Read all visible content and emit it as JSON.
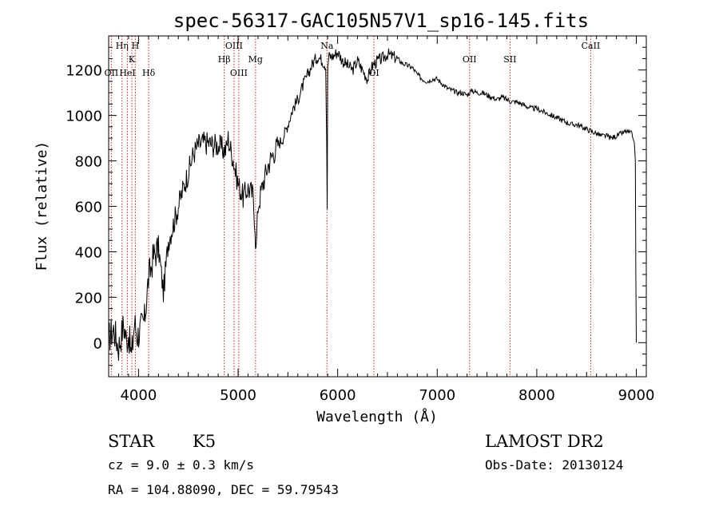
{
  "chart_data": {
    "type": "line",
    "title": "spec-56317-GAC105N57V1_sp16-145.fits",
    "xlabel": "Wavelength (Å)",
    "ylabel": "Flux (relative)",
    "xlim": [
      3700,
      9100
    ],
    "ylim": [
      -150,
      1350
    ],
    "grid": false,
    "xticks": [
      {
        "value": 4000,
        "label": "4000"
      },
      {
        "value": 5000,
        "label": "5000"
      },
      {
        "value": 6000,
        "label": "6000"
      },
      {
        "value": 7000,
        "label": "7000"
      },
      {
        "value": 8000,
        "label": "8000"
      },
      {
        "value": 9000,
        "label": "9000"
      }
    ],
    "yticks": [
      {
        "value": 0,
        "label": "0"
      },
      {
        "value": 200,
        "label": "200"
      },
      {
        "value": 400,
        "label": "400"
      },
      {
        "value": 600,
        "label": "600"
      },
      {
        "value": 800,
        "label": "800"
      },
      {
        "value": 1000,
        "label": "1000"
      },
      {
        "value": 1200,
        "label": "1200"
      }
    ],
    "series": [
      {
        "color": "#000000",
        "x": [
          3700,
          3750,
          3800,
          3850,
          3880,
          3900,
          3930,
          3960,
          3990,
          4020,
          4060,
          4100,
          4150,
          4200,
          4230,
          4250,
          4300,
          4350,
          4400,
          4450,
          4500,
          4550,
          4600,
          4650,
          4700,
          4750,
          4800,
          4850,
          4880,
          4900,
          4920,
          4950,
          4980,
          5000,
          5050,
          5100,
          5150,
          5170,
          5180,
          5200,
          5250,
          5300,
          5350,
          5400,
          5450,
          5500,
          5550,
          5600,
          5650,
          5700,
          5750,
          5800,
          5850,
          5880,
          5890,
          5895,
          5900,
          5910,
          5950,
          6000,
          6050,
          6100,
          6150,
          6200,
          6250,
          6300,
          6350,
          6400,
          6450,
          6500,
          6550,
          6600,
          6650,
          6700,
          6750,
          6800,
          6850,
          6900,
          6950,
          7000,
          7050,
          7100,
          7150,
          7200,
          7250,
          7300,
          7350,
          7400,
          7450,
          7500,
          7550,
          7600,
          7650,
          7700,
          7750,
          7800,
          7850,
          7900,
          7950,
          8000,
          8050,
          8100,
          8150,
          8200,
          8250,
          8300,
          8350,
          8400,
          8450,
          8500,
          8550,
          8600,
          8650,
          8700,
          8750,
          8800,
          8850,
          8900,
          8950,
          8980,
          8990,
          8995,
          9000
        ],
        "y": [
          20,
          60,
          -20,
          80,
          10,
          40,
          -60,
          90,
          30,
          60,
          100,
          280,
          380,
          420,
          300,
          220,
          450,
          520,
          600,
          680,
          750,
          830,
          870,
          880,
          880,
          870,
          870,
          850,
          850,
          900,
          860,
          810,
          740,
          700,
          640,
          680,
          650,
          520,
          400,
          600,
          700,
          780,
          830,
          870,
          900,
          960,
          1030,
          1070,
          1130,
          1180,
          1230,
          1260,
          1240,
          1220,
          900,
          600,
          1200,
          1260,
          1260,
          1280,
          1240,
          1220,
          1200,
          1240,
          1200,
          1160,
          1220,
          1240,
          1250,
          1270,
          1260,
          1250,
          1230,
          1220,
          1210,
          1180,
          1160,
          1150,
          1160,
          1160,
          1140,
          1120,
          1110,
          1100,
          1100,
          1090,
          1110,
          1100,
          1100,
          1090,
          1080,
          1070,
          1080,
          1070,
          1060,
          1060,
          1050,
          1040,
          1030,
          1030,
          1020,
          1010,
          1000,
          990,
          980,
          970,
          960,
          960,
          950,
          940,
          930,
          920,
          910,
          910,
          900,
          910,
          920,
          930,
          920,
          880,
          800,
          300,
          0
        ]
      }
    ],
    "spectral_lines": [
      {
        "label": "Hη",
        "x": 3835,
        "row": 1
      },
      {
        "label": "H",
        "x": 3968,
        "row": 1
      },
      {
        "label": "K",
        "x": 3933,
        "row": 2
      },
      {
        "label": "OII",
        "x": 3727,
        "row": 3
      },
      {
        "label": "HeI",
        "x": 3889,
        "row": 3
      },
      {
        "label": "Hδ",
        "x": 4102,
        "row": 3
      },
      {
        "label": "OIII",
        "x": 4959,
        "row": 1
      },
      {
        "label": "Hβ",
        "x": 4861,
        "row": 2
      },
      {
        "label": "Mg",
        "x": 5175,
        "row": 2
      },
      {
        "label": "OIII",
        "x": 5007,
        "row": 3
      },
      {
        "label": "Na",
        "x": 5893,
        "row": 1
      },
      {
        "label": "OI",
        "x": 6364,
        "row": 3
      },
      {
        "label": "OII",
        "x": 7325,
        "row": 2
      },
      {
        "label": "SII",
        "x": 7731,
        "row": 2
      },
      {
        "label": "CaII",
        "x": 8542,
        "row": 1
      }
    ]
  },
  "footer": {
    "object_type": "STAR",
    "subclass": "K5",
    "survey": "LAMOST DR2",
    "cz": "cz = 9.0 ± 0.3 km/s",
    "obs_date": "Obs-Date: 20130124",
    "coords": "RA = 104.88090, DEC =  59.79543"
  },
  "colors": {
    "spectrum": "#000000",
    "line_markers": "#cc2222"
  }
}
